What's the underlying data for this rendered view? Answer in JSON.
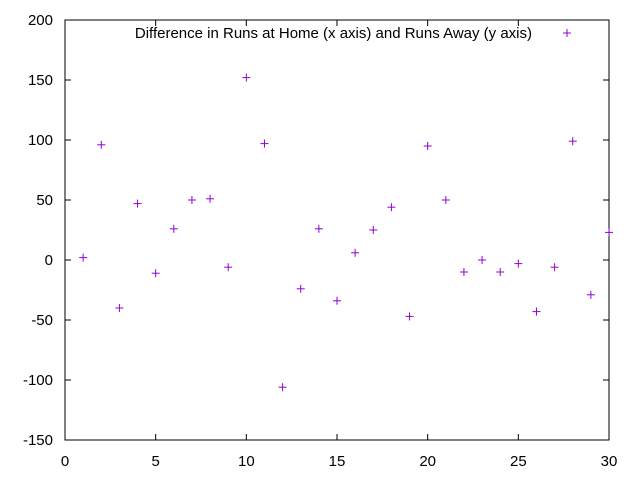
{
  "chart_data": {
    "type": "scatter",
    "title": "",
    "xlabel": "",
    "ylabel": "",
    "xlim": [
      0,
      30
    ],
    "ylim": [
      -150,
      200
    ],
    "x_ticks": [
      0,
      5,
      10,
      15,
      20,
      25,
      30
    ],
    "y_ticks": [
      -150,
      -100,
      -50,
      0,
      50,
      100,
      150,
      200
    ],
    "grid": false,
    "legend_position": "top-right",
    "series": [
      {
        "name": "Difference in Runs at Home (x axis) and Runs Away (y axis)",
        "color": "#9400d3",
        "marker": "plus",
        "points": [
          {
            "x": 1,
            "y": 2
          },
          {
            "x": 2,
            "y": 96
          },
          {
            "x": 3,
            "y": -40
          },
          {
            "x": 4,
            "y": 47
          },
          {
            "x": 5,
            "y": -11
          },
          {
            "x": 6,
            "y": 26
          },
          {
            "x": 7,
            "y": 50
          },
          {
            "x": 8,
            "y": 51
          },
          {
            "x": 9,
            "y": -6
          },
          {
            "x": 10,
            "y": 152
          },
          {
            "x": 11,
            "y": 97
          },
          {
            "x": 12,
            "y": -106
          },
          {
            "x": 13,
            "y": -24
          },
          {
            "x": 14,
            "y": 26
          },
          {
            "x": 15,
            "y": -34
          },
          {
            "x": 16,
            "y": 6
          },
          {
            "x": 17,
            "y": 25
          },
          {
            "x": 18,
            "y": 44
          },
          {
            "x": 19,
            "y": -47
          },
          {
            "x": 20,
            "y": 95
          },
          {
            "x": 21,
            "y": 50
          },
          {
            "x": 22,
            "y": -10
          },
          {
            "x": 23,
            "y": 0
          },
          {
            "x": 24,
            "y": -10
          },
          {
            "x": 25,
            "y": -3
          },
          {
            "x": 26,
            "y": -43
          },
          {
            "x": 27,
            "y": -6
          },
          {
            "x": 28,
            "y": 99
          },
          {
            "x": 29,
            "y": -29
          },
          {
            "x": 30,
            "y": 23
          }
        ]
      }
    ]
  }
}
